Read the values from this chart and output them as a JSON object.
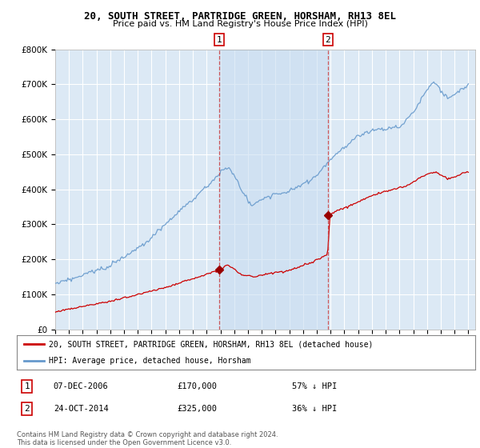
{
  "title": "20, SOUTH STREET, PARTRIDGE GREEN, HORSHAM, RH13 8EL",
  "subtitle": "Price paid vs. HM Land Registry's House Price Index (HPI)",
  "background_color": "#dce9f5",
  "plot_bg_color": "#dce9f5",
  "sale1_date": 2006.92,
  "sale1_price": 170000,
  "sale1_label": "1",
  "sale2_date": 2014.81,
  "sale2_price": 325000,
  "sale2_label": "2",
  "shade_color": "#c8ddf0",
  "ylim": [
    0,
    800000
  ],
  "xlim_start": 1995.0,
  "xlim_end": 2025.5,
  "yticks": [
    0,
    100000,
    200000,
    300000,
    400000,
    500000,
    600000,
    700000,
    800000
  ],
  "legend_prop_label": "20, SOUTH STREET, PARTRIDGE GREEN, HORSHAM, RH13 8EL (detached house)",
  "legend_hpi_label": "HPI: Average price, detached house, Horsham",
  "table_rows": [
    {
      "num": "1",
      "date": "07-DEC-2006",
      "price": "£170,000",
      "pct": "57% ↓ HPI"
    },
    {
      "num": "2",
      "date": "24-OCT-2014",
      "price": "£325,000",
      "pct": "36% ↓ HPI"
    }
  ],
  "footnote": "Contains HM Land Registry data © Crown copyright and database right 2024.\nThis data is licensed under the Open Government Licence v3.0.",
  "prop_color": "#cc0000",
  "hpi_color": "#6699cc",
  "vline_color": "#cc3333",
  "marker_color": "#990000"
}
